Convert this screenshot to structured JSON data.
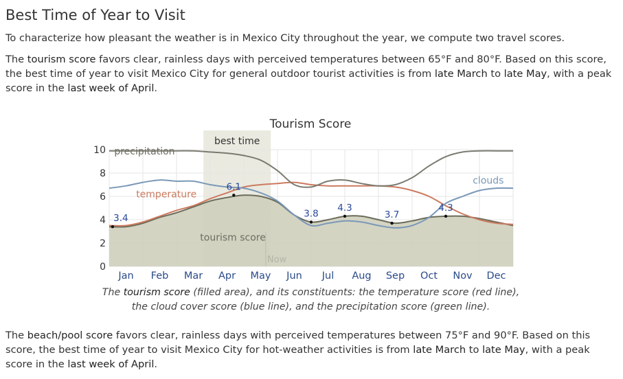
{
  "heading": "Best Time of Year to Visit",
  "intro": "To characterize how pleasant the weather is in Mexico City throughout the year, we compute two travel scores.",
  "tourism_para": {
    "t1": "The ",
    "score_name": "tourism score",
    "t2": " favors clear, rainless days with perceived temperatures between 65°F and 80°F. Based on this score, the best time of year to visit Mexico City for general outdoor tourist activities is from ",
    "start": "late March",
    "t3": " to ",
    "end": "late May",
    "t4": ", with a peak score in the ",
    "peak": "last week of April",
    "t5": "."
  },
  "beach_para": {
    "t1": "The ",
    "score_name": "beach/pool score",
    "t2": " favors clear, rainless days with perceived temperatures between 75°F and 90°F. Based on this score, the best time of year to visit Mexico City for hot-weather activities is from ",
    "start": "late March",
    "t3": " to ",
    "end": "late May",
    "t4": ", with a peak score in the ",
    "peak": "last week of April",
    "t5": "."
  },
  "caption": {
    "t1": "The ",
    "score_name": "tourism score",
    "t2": " (filled area), and its constituents: the temperature score (red line), the cloud cover score (blue line), and the precipitation score (green line)."
  },
  "chart_data": {
    "type": "area",
    "title": "Tourism Score",
    "x_unit": "month",
    "xlim": [
      0,
      12
    ],
    "ylim": [
      0,
      10
    ],
    "y_ticks": [
      0,
      2,
      4,
      6,
      8,
      10
    ],
    "month_labels": [
      "Jan",
      "Feb",
      "Mar",
      "Apr",
      "May",
      "Jun",
      "Jul",
      "Aug",
      "Sep",
      "Oct",
      "Nov",
      "Dec"
    ],
    "best_time": {
      "label": "best time",
      "start": 2.8,
      "end": 4.8
    },
    "now": {
      "label": "Now",
      "x": 4.65
    },
    "grid": true,
    "colors": {
      "tourism_fill": "#cfcfbd",
      "tourism_line": "#6b6b5a",
      "temperature": "#cc7a5e",
      "clouds": "#7a98b8",
      "precipitation": "#7a7a70",
      "annotation": "#2a4a9a",
      "best_band": "#d8d8c6"
    },
    "series": [
      {
        "name": "tourism score",
        "kind": "filled",
        "x": [
          0,
          0.5,
          1,
          1.5,
          2,
          2.5,
          3,
          3.5,
          4,
          4.5,
          5,
          5.5,
          6,
          6.5,
          7,
          7.5,
          8,
          8.5,
          9,
          9.5,
          10,
          10.5,
          11,
          11.5,
          12
        ],
        "values": [
          3.4,
          3.4,
          3.7,
          4.2,
          4.6,
          5.1,
          5.6,
          5.9,
          6.1,
          6.0,
          5.5,
          4.4,
          3.8,
          4.0,
          4.3,
          4.3,
          4.0,
          3.7,
          3.9,
          4.2,
          4.3,
          4.3,
          4.1,
          3.8,
          3.5
        ]
      },
      {
        "name": "temperature",
        "kind": "line",
        "x": [
          0,
          0.5,
          1,
          1.5,
          2,
          2.5,
          3,
          3.5,
          4,
          4.5,
          5,
          5.5,
          6,
          6.5,
          7,
          7.5,
          8,
          8.5,
          9,
          9.5,
          10,
          10.5,
          11,
          11.5,
          12
        ],
        "values": [
          3.5,
          3.5,
          3.8,
          4.3,
          4.8,
          5.2,
          5.8,
          6.3,
          6.8,
          7.0,
          7.1,
          7.2,
          7.0,
          6.9,
          6.9,
          6.9,
          6.9,
          6.8,
          6.5,
          6.0,
          5.2,
          4.5,
          4.0,
          3.7,
          3.6
        ]
      },
      {
        "name": "clouds",
        "kind": "line",
        "x": [
          0,
          0.5,
          1,
          1.5,
          2,
          2.5,
          3,
          3.5,
          4,
          4.5,
          5,
          5.5,
          6,
          6.5,
          7,
          7.5,
          8,
          8.5,
          9,
          9.5,
          10,
          10.5,
          11,
          11.5,
          12
        ],
        "values": [
          6.7,
          6.9,
          7.2,
          7.4,
          7.3,
          7.3,
          7.0,
          6.8,
          6.7,
          6.3,
          5.6,
          4.4,
          3.5,
          3.7,
          3.9,
          3.8,
          3.5,
          3.3,
          3.5,
          4.2,
          5.4,
          6.0,
          6.5,
          6.7,
          6.7
        ]
      },
      {
        "name": "precipitation",
        "kind": "line",
        "x": [
          0,
          0.5,
          1,
          1.5,
          2,
          2.5,
          3,
          3.5,
          4,
          4.5,
          5,
          5.5,
          6,
          6.5,
          7,
          7.5,
          8,
          8.5,
          9,
          9.5,
          10,
          10.5,
          11,
          11.5,
          12
        ],
        "values": [
          9.9,
          9.9,
          9.9,
          9.9,
          9.9,
          9.9,
          9.8,
          9.7,
          9.5,
          9.1,
          8.2,
          7.0,
          6.8,
          7.3,
          7.4,
          7.1,
          6.9,
          7.0,
          7.6,
          8.6,
          9.4,
          9.8,
          9.9,
          9.9,
          9.9
        ]
      }
    ],
    "series_labels": [
      {
        "text": "precipitation",
        "x": 0.15,
        "y": 9.6
      },
      {
        "text": "temperature",
        "x": 0.8,
        "y": 5.9
      },
      {
        "text": "clouds",
        "x": 10.8,
        "y": 7.1
      },
      {
        "text": "tourism score",
        "x": 2.7,
        "y": 2.2
      }
    ],
    "annotations": [
      {
        "x": 0.1,
        "y": 3.4,
        "label": "3.4"
      },
      {
        "x": 3.7,
        "y": 6.1,
        "label": "6.1"
      },
      {
        "x": 6.0,
        "y": 3.8,
        "label": "3.8"
      },
      {
        "x": 7.0,
        "y": 4.3,
        "label": "4.3"
      },
      {
        "x": 8.4,
        "y": 3.7,
        "label": "3.7"
      },
      {
        "x": 10.0,
        "y": 4.3,
        "label": "4.3"
      }
    ]
  }
}
